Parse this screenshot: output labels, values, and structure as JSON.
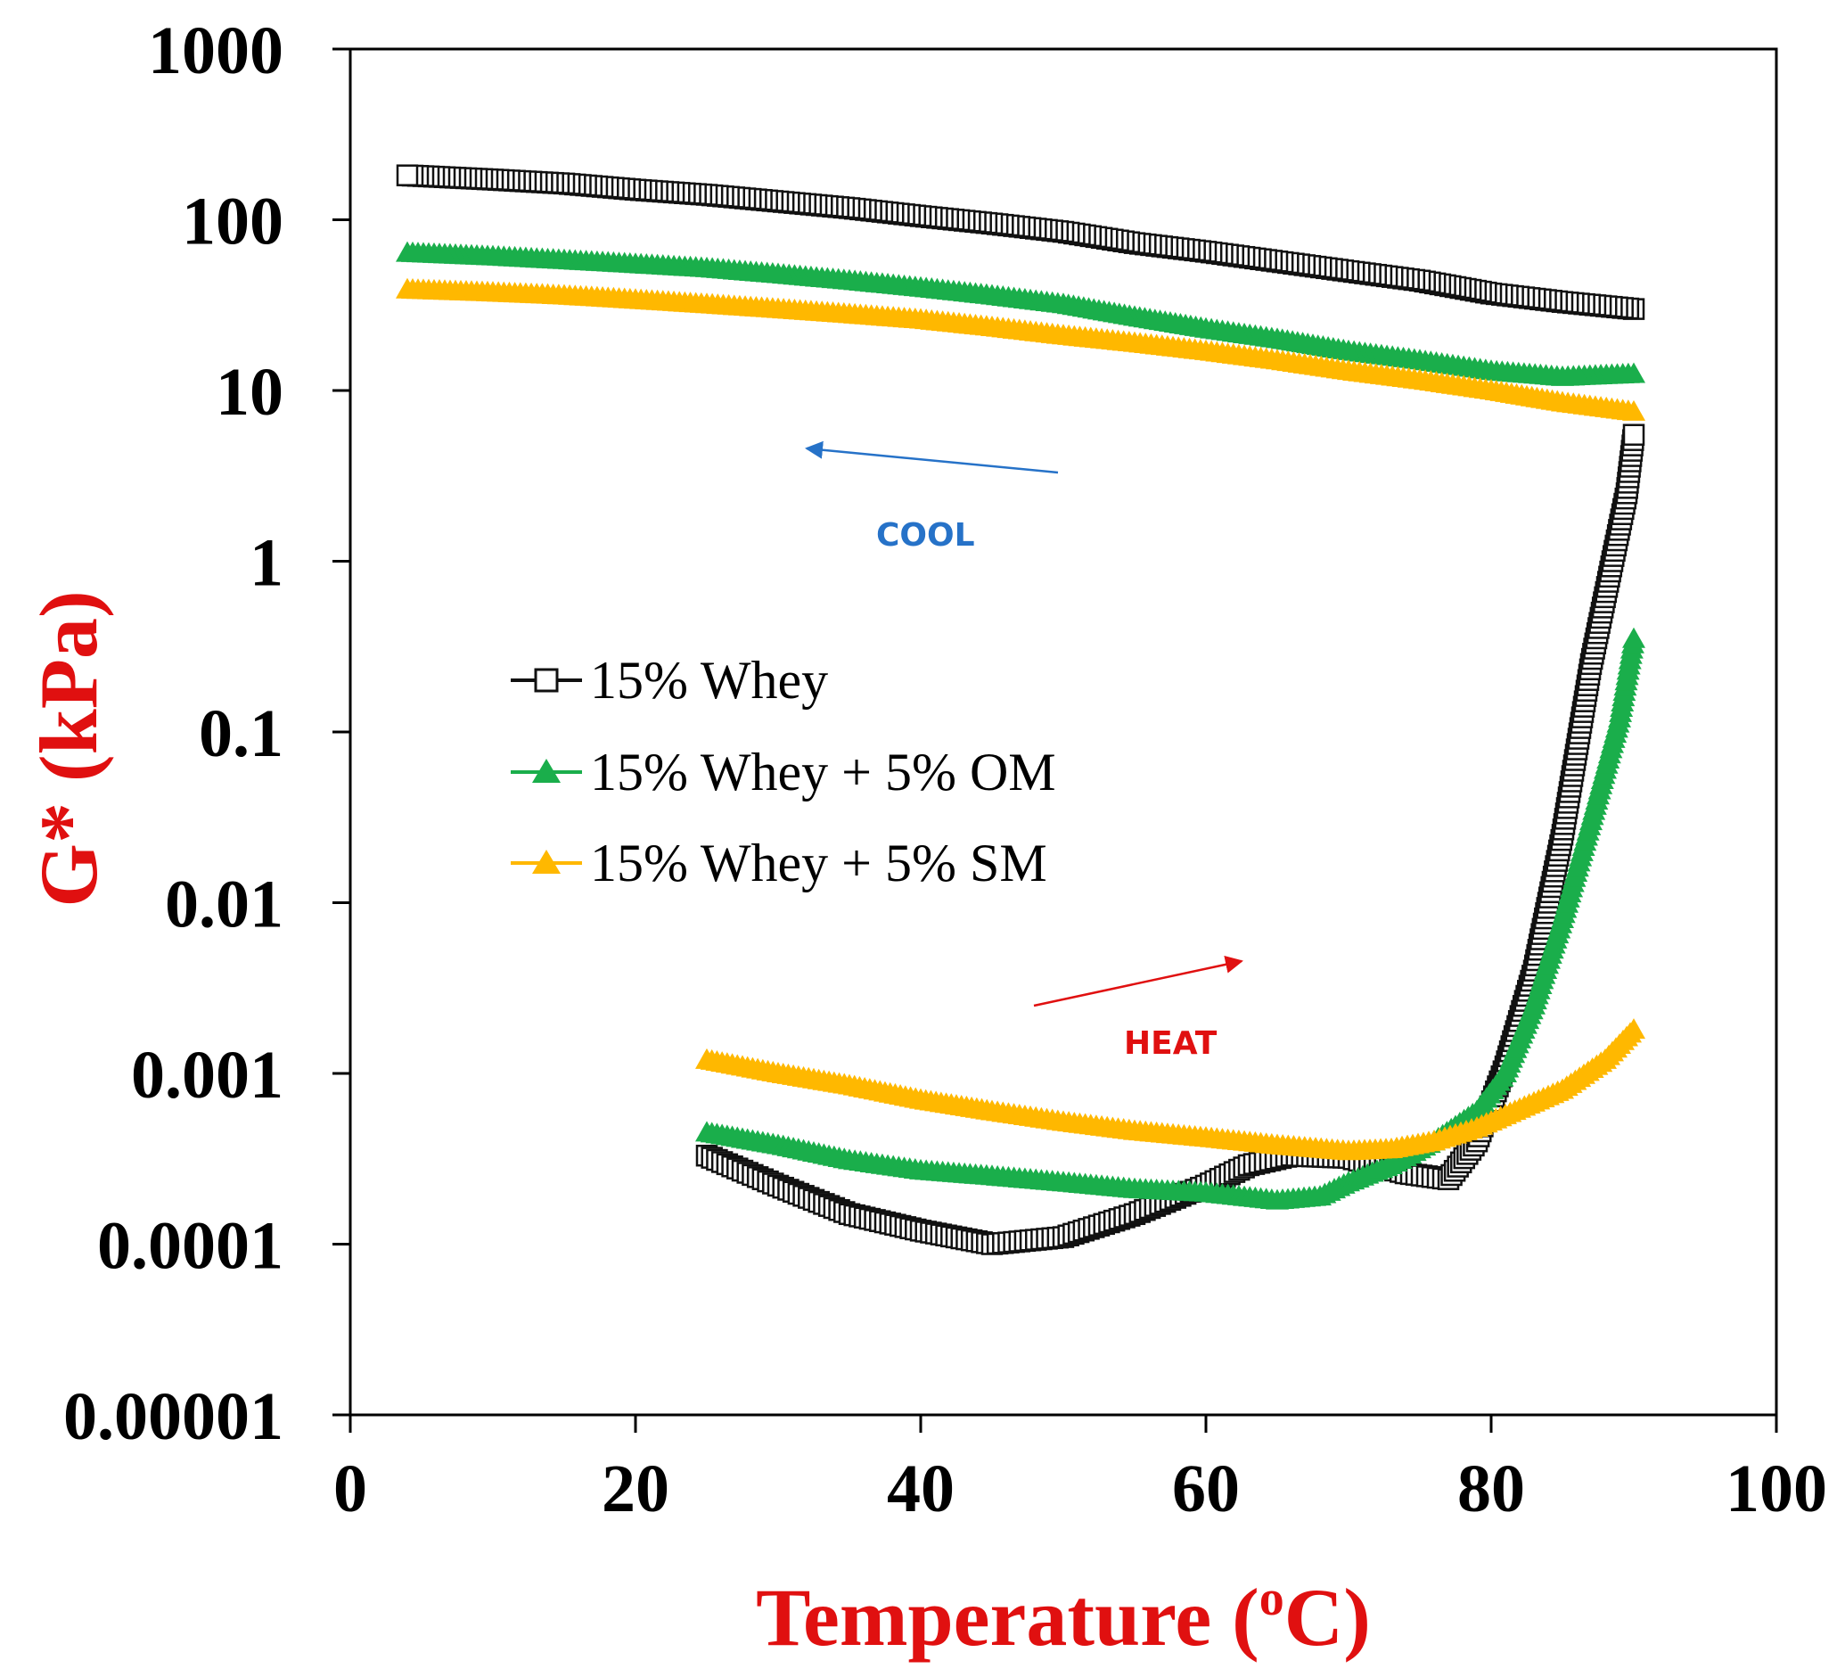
{
  "chart_data": {
    "type": "scatter",
    "title": "",
    "xlabel": "Temperature (",
    "xlabel_sup": "o",
    "xlabel_tail": "C)",
    "ylabel": "G* (kPa)",
    "axis_title_color": "#e01010",
    "xlim": [
      0,
      100
    ],
    "ylim": [
      1e-05,
      1000
    ],
    "yscale": "log",
    "x_ticks": [
      0,
      20,
      40,
      60,
      80,
      100
    ],
    "x_tick_labels": [
      "0",
      "20",
      "40",
      "60",
      "80",
      "100"
    ],
    "y_ticks": [
      1e-05,
      0.0001,
      0.001,
      0.01,
      0.1,
      1,
      10,
      100,
      1000
    ],
    "y_tick_labels": [
      "0.00001",
      "0.0001",
      "0.001",
      "0.01",
      "0.1",
      "1",
      "10",
      "100",
      "1000"
    ],
    "grid": false,
    "legend_position": "center-left",
    "series": [
      {
        "name": "15% Whey",
        "marker": "square-open",
        "color": "#111111",
        "heat": [
          [
            25,
            0.00033
          ],
          [
            30,
            0.00022
          ],
          [
            35,
            0.00015
          ],
          [
            40,
            0.00012
          ],
          [
            45,
            0.0001
          ],
          [
            50,
            0.00011
          ],
          [
            55,
            0.00015
          ],
          [
            60,
            0.00022
          ],
          [
            63,
            0.00029
          ],
          [
            66,
            0.00033
          ],
          [
            70,
            0.00032
          ],
          [
            74,
            0.00026
          ],
          [
            77,
            0.00024
          ],
          [
            79,
            0.0004
          ],
          [
            81,
            0.0011
          ],
          [
            83,
            0.004
          ],
          [
            85,
            0.025
          ],
          [
            87,
            0.25
          ],
          [
            88.5,
            1.0
          ],
          [
            89.5,
            2.5
          ],
          [
            90,
            5.5
          ]
        ],
        "cool": [
          [
            90,
            30
          ],
          [
            85,
            33
          ],
          [
            80,
            37
          ],
          [
            75,
            44
          ],
          [
            70,
            50
          ],
          [
            65,
            57
          ],
          [
            60,
            65
          ],
          [
            55,
            73
          ],
          [
            50,
            85
          ],
          [
            45,
            95
          ],
          [
            40,
            105
          ],
          [
            35,
            117
          ],
          [
            30,
            128
          ],
          [
            25,
            140
          ],
          [
            20,
            150
          ],
          [
            15,
            163
          ],
          [
            10,
            172
          ],
          [
            4,
            182
          ]
        ]
      },
      {
        "name": "15% Whey + 5% OM",
        "marker": "triangle-filled",
        "color": "#1aae4b",
        "heat": [
          [
            25,
            0.00045
          ],
          [
            30,
            0.00038
          ],
          [
            35,
            0.00031
          ],
          [
            40,
            0.00027
          ],
          [
            45,
            0.00025
          ],
          [
            50,
            0.00023
          ],
          [
            55,
            0.00021
          ],
          [
            60,
            0.0002
          ],
          [
            65,
            0.00018
          ],
          [
            68,
            0.00019
          ],
          [
            70,
            0.00023
          ],
          [
            73,
            0.00029
          ],
          [
            76,
            0.0004
          ],
          [
            79,
            0.0006
          ],
          [
            81,
            0.001
          ],
          [
            83,
            0.0025
          ],
          [
            85,
            0.008
          ],
          [
            87,
            0.03
          ],
          [
            89,
            0.12
          ],
          [
            90,
            0.35
          ]
        ],
        "cool": [
          [
            90,
            12.5
          ],
          [
            85,
            12
          ],
          [
            80,
            13
          ],
          [
            75,
            15
          ],
          [
            70,
            17
          ],
          [
            65,
            20
          ],
          [
            60,
            23
          ],
          [
            55,
            27
          ],
          [
            50,
            32
          ],
          [
            45,
            36
          ],
          [
            40,
            40
          ],
          [
            35,
            44
          ],
          [
            30,
            48
          ],
          [
            25,
            52
          ],
          [
            20,
            55
          ],
          [
            15,
            58
          ],
          [
            10,
            61
          ],
          [
            4,
            64
          ]
        ]
      },
      {
        "name": "15% Whey + 5% SM",
        "marker": "triangle-filled",
        "color": "#ffb800",
        "heat": [
          [
            25,
            0.0012
          ],
          [
            30,
            0.001
          ],
          [
            35,
            0.00085
          ],
          [
            40,
            0.0007
          ],
          [
            45,
            0.0006
          ],
          [
            50,
            0.00052
          ],
          [
            55,
            0.00046
          ],
          [
            60,
            0.00042
          ],
          [
            65,
            0.00038
          ],
          [
            70,
            0.00035
          ],
          [
            73,
            0.00036
          ],
          [
            76,
            0.0004
          ],
          [
            79,
            0.00048
          ],
          [
            82,
            0.00062
          ],
          [
            85,
            0.0008
          ],
          [
            88,
            0.0012
          ],
          [
            90,
            0.0018
          ]
        ],
        "cool": [
          [
            90,
            7.5
          ],
          [
            85,
            8.5
          ],
          [
            80,
            10
          ],
          [
            75,
            11.5
          ],
          [
            70,
            13
          ],
          [
            65,
            15
          ],
          [
            60,
            17
          ],
          [
            55,
            19
          ],
          [
            50,
            21
          ],
          [
            45,
            23.5
          ],
          [
            40,
            26
          ],
          [
            35,
            28
          ],
          [
            30,
            30
          ],
          [
            25,
            32
          ],
          [
            20,
            34
          ],
          [
            15,
            36
          ],
          [
            10,
            37.5
          ],
          [
            4,
            39
          ]
        ]
      }
    ],
    "annotations": [
      {
        "text": "COOL",
        "color": "#2672c8",
        "direction": "left"
      },
      {
        "text": "HEAT",
        "color": "#e01010",
        "direction": "right"
      }
    ]
  }
}
